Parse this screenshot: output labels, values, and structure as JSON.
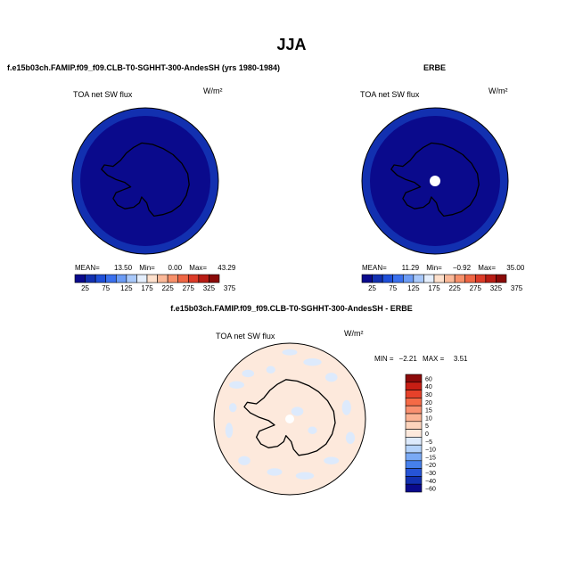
{
  "main_title": "JJA",
  "chart_data": [
    {
      "type": "heatmap",
      "projection": "south polar stereographic",
      "title": "f.e15b03ch.FAMIP.f09_f09.CLB-T0-SGHHT-300-AndesSH (yrs 1980-1984)",
      "variable": "TOA net SW flux",
      "units": "W/m²",
      "stats": {
        "mean_label": "MEAN=",
        "mean": "13.50",
        "min_label": "Min=",
        "min": "0.00",
        "max_label": "Max=",
        "max": "43.29"
      },
      "colorbar": {
        "ticks": [
          "25",
          "75",
          "125",
          "175",
          "225",
          "275",
          "325",
          "375"
        ],
        "colors": [
          "#0a0a8c",
          "#1230b0",
          "#1f4fd8",
          "#3a70ee",
          "#6b9bf5",
          "#a8c8fa",
          "#e4eefc",
          "#fde0cc",
          "#fbb898",
          "#f7906a",
          "#ef6644",
          "#dc3b28",
          "#b81c14",
          "#8a0a08"
        ]
      },
      "dominant_levels": [
        "#0a0a8c",
        "#1230b0"
      ]
    },
    {
      "type": "heatmap",
      "projection": "south polar stereographic",
      "title": "ERBE",
      "variable": "TOA net SW flux",
      "units": "W/m²",
      "stats": {
        "mean_label": "MEAN=",
        "mean": "11.29",
        "min_label": "Min=",
        "min": "−0.92",
        "max_label": "Max=",
        "max": "35.00"
      },
      "colorbar": {
        "ticks": [
          "25",
          "75",
          "125",
          "175",
          "225",
          "275",
          "325",
          "375"
        ],
        "colors": [
          "#0a0a8c",
          "#1230b0",
          "#1f4fd8",
          "#3a70ee",
          "#6b9bf5",
          "#a8c8fa",
          "#e4eefc",
          "#fde0cc",
          "#fbb898",
          "#f7906a",
          "#ef6644",
          "#dc3b28",
          "#b81c14",
          "#8a0a08"
        ]
      },
      "dominant_levels": [
        "#0a0a8c",
        "#1230b0"
      ]
    },
    {
      "type": "heatmap",
      "projection": "south polar stereographic",
      "title": "f.e15b03ch.FAMIP.f09_f09.CLB-T0-SGHHT-300-AndesSH - ERBE",
      "variable": "TOA net SW flux",
      "units": "W/m²",
      "stats": {
        "min_label": "MIN =",
        "min": "−2.21",
        "max_label": "MAX =",
        "max": "3.51"
      },
      "colorbar": {
        "ticks": [
          "60",
          "40",
          "30",
          "20",
          "15",
          "10",
          "5",
          "0",
          "−5",
          "−10",
          "−15",
          "−20",
          "−30",
          "−40",
          "−60"
        ],
        "colors": [
          "#8c0a0a",
          "#c81e14",
          "#e6412a",
          "#f56a46",
          "#f99070",
          "#fbb394",
          "#fdd4bc",
          "#fde9dc",
          "#ddeafc",
          "#b4d2fa",
          "#7aaaf5",
          "#4680ec",
          "#2654d6",
          "#1230b0",
          "#0a0a8c"
        ]
      },
      "dominant_levels": [
        "#fde9dc",
        "#ddeafc"
      ]
    }
  ]
}
